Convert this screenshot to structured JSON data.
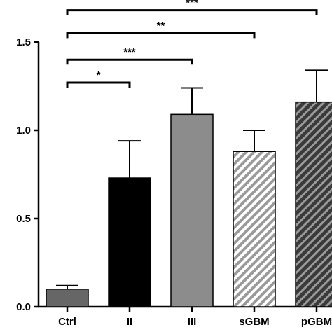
{
  "chart_data": {
    "type": "bar",
    "categories": [
      "Ctrl",
      "II",
      "III",
      "sGBM",
      "pGBM"
    ],
    "values": [
      0.1,
      0.73,
      1.09,
      0.88,
      1.16
    ],
    "errors": [
      0.02,
      0.21,
      0.15,
      0.12,
      0.18
    ],
    "yticks": [
      "0.0",
      "0.5",
      "1.0",
      "1.5"
    ],
    "ylim": [
      0,
      1.5
    ],
    "bar_styles": [
      {
        "fill": "#666666",
        "pattern": "solid"
      },
      {
        "fill": "#000000",
        "pattern": "solid"
      },
      {
        "fill": "#8c8c8c",
        "pattern": "solid"
      },
      {
        "fill": "#aaaaaa",
        "pattern": "diagonal-light"
      },
      {
        "fill": "#555555",
        "pattern": "diagonal-dark"
      }
    ],
    "significance": [
      {
        "from": 0,
        "to": 1,
        "label": "*",
        "y": 1.27
      },
      {
        "from": 0,
        "to": 2,
        "label": "***",
        "y": 1.4
      },
      {
        "from": 0,
        "to": 3,
        "label": "**",
        "y": 1.55
      },
      {
        "from": 0,
        "to": 4,
        "label": "***",
        "y": 1.68
      }
    ],
    "grid": false
  }
}
